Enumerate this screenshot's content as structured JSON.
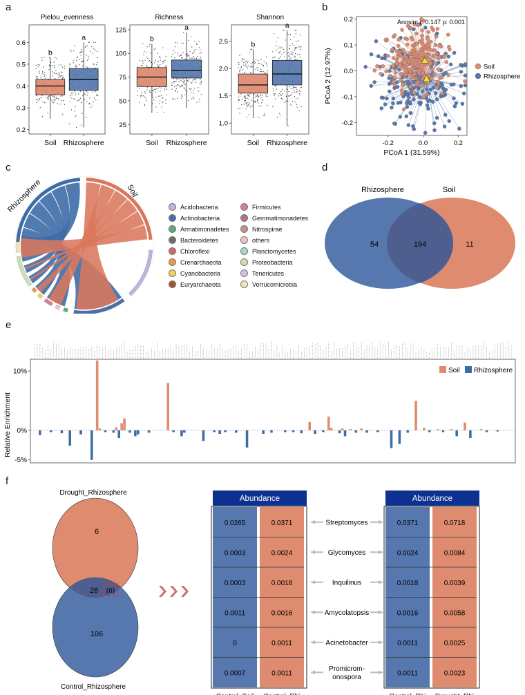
{
  "panel_labels": {
    "a": "a",
    "b": "b",
    "c": "c",
    "d": "d",
    "e": "e",
    "f": "f"
  },
  "colors": {
    "soil": "#D9775D",
    "rhizosphere": "#3E6CA7",
    "soil_fill": "#DE8B70",
    "rhizo_fill": "#5678AE",
    "overlap": "#4E5F8F",
    "header": "#0D3191",
    "arrow": "#C8706A"
  },
  "panel_a": {
    "boxes": [
      {
        "title": "Pielou_evenness",
        "ticks": [
          "0.2",
          "0.3",
          "0.4",
          "0.5",
          "0.6"
        ],
        "groups": [
          {
            "name": "Soil",
            "letter": "b",
            "q1": 0.36,
            "median": 0.4,
            "q3": 0.43,
            "wlo": 0.25,
            "whi": 0.53
          },
          {
            "name": "Rhizosphere",
            "letter": "a",
            "q1": 0.38,
            "median": 0.43,
            "q3": 0.48,
            "wlo": 0.21,
            "whi": 0.6
          }
        ]
      },
      {
        "title": "Richness",
        "ticks": [
          "25",
          "50",
          "75",
          "100",
          "125"
        ],
        "groups": [
          {
            "name": "Soil",
            "letter": "b",
            "q1": 65,
            "median": 75,
            "q3": 85,
            "wlo": 38,
            "whi": 110
          },
          {
            "name": "Rhizosphere",
            "letter": "a",
            "q1": 74,
            "median": 82,
            "q3": 93,
            "wlo": 42,
            "whi": 122
          }
        ]
      },
      {
        "title": "Shannon",
        "ticks": [
          "1.0",
          "1.5",
          "2.0",
          "2.5"
        ],
        "groups": [
          {
            "name": "Soil",
            "letter": "b",
            "q1": 1.55,
            "median": 1.7,
            "q3": 1.9,
            "wlo": 1.1,
            "whi": 2.35
          },
          {
            "name": "Rhizosphere",
            "letter": "a",
            "q1": 1.7,
            "median": 1.9,
            "q3": 2.15,
            "wlo": 0.95,
            "whi": 2.7
          }
        ]
      }
    ]
  },
  "panel_b": {
    "stat": "Anosim.r: 0.147 p: 0.001",
    "xlabel": "PCoA 1 (31.59%)",
    "ylabel": "PCoA 2 (12.97%)",
    "xticks": [
      "-0.2",
      "0.0",
      "0.2"
    ],
    "yticks": [
      "0.2",
      "0.1",
      "0.0",
      "-0.1",
      "-0.2"
    ],
    "legend": [
      "Soil",
      "Rhizosphere"
    ],
    "xlim": [
      -0.38,
      0.25
    ],
    "ylim": [
      -0.25,
      0.21
    ],
    "centroids": {
      "Soil": [
        0.01,
        0.04
      ],
      "Rhizosphere": [
        0.02,
        -0.03
      ]
    }
  },
  "panel_c": {
    "sector_labels": [
      "Rhizosphere",
      "Soil"
    ],
    "legend": [
      "Acidobacteria",
      "Actinobacteria",
      "Armatimonadetes",
      "Bacteroidetes",
      "Chloroflexi",
      "Crenarchaeota",
      "Cyanobacteria",
      "Euryarchaeota",
      "Firmicutes",
      "Gemmatimonadetes",
      "Nitrospirae",
      "others",
      "Planctomycetes",
      "Proteobacteria",
      "Tenericutes",
      "Verrucomicrobia"
    ],
    "legend_colors": [
      "#B9B6DC",
      "#4A6FA8",
      "#5DAA7C",
      "#6E6E6E",
      "#D36A5E",
      "#E59A4E",
      "#E8D35C",
      "#A9522F",
      "#D77F95",
      "#B77386",
      "#C98E8A",
      "#F1BFD0",
      "#A9D6D6",
      "#C8E2B8",
      "#D7BDE2",
      "#F6E7B2"
    ]
  },
  "panel_d": {
    "left_label": "Rhizosphere",
    "right_label": "Soil",
    "left_only": "54",
    "overlap": "194",
    "right_only": "11"
  },
  "panel_e": {
    "ylabel": "Relative Enrichment",
    "yticks": [
      "10%",
      "0%",
      "-5%"
    ],
    "legend": [
      "Soil",
      "Rhizosphere"
    ]
  },
  "chart_data": {
    "type": "bar",
    "title": "",
    "ylabel": "Relative Enrichment",
    "ylim": [
      -5.5,
      12
    ],
    "series": [
      {
        "name": "Soil",
        "values": [
          {
            "i": 23,
            "v": 11.8
          },
          {
            "i": 24,
            "v": 0.3
          },
          {
            "i": 30,
            "v": 0.5
          },
          {
            "i": 32,
            "v": 1.2
          },
          {
            "i": 33,
            "v": 2.0
          },
          {
            "i": 49,
            "v": 8.0
          },
          {
            "i": 101,
            "v": 1.4
          },
          {
            "i": 108,
            "v": 2.3
          },
          {
            "i": 109,
            "v": 0.4
          },
          {
            "i": 113,
            "v": 0.3
          },
          {
            "i": 116,
            "v": 0.2
          },
          {
            "i": 120,
            "v": 0.3
          },
          {
            "i": 140,
            "v": 5.0
          },
          {
            "i": 143,
            "v": 0.4
          },
          {
            "i": 148,
            "v": 0.2
          },
          {
            "i": 153,
            "v": 0.2
          },
          {
            "i": 158,
            "v": 1.3
          },
          {
            "i": 164,
            "v": 0.2
          }
        ]
      },
      {
        "name": "Rhizosphere",
        "values": [
          {
            "i": 2,
            "v": -0.8
          },
          {
            "i": 6,
            "v": -0.3
          },
          {
            "i": 10,
            "v": -0.5
          },
          {
            "i": 13,
            "v": -2.6
          },
          {
            "i": 17,
            "v": -0.7
          },
          {
            "i": 21,
            "v": -5.0
          },
          {
            "i": 26,
            "v": -0.3
          },
          {
            "i": 29,
            "v": -0.4
          },
          {
            "i": 31,
            "v": -1.3
          },
          {
            "i": 35,
            "v": -0.4
          },
          {
            "i": 37,
            "v": -1.0
          },
          {
            "i": 38,
            "v": -0.7
          },
          {
            "i": 42,
            "v": -0.4
          },
          {
            "i": 51,
            "v": -0.3
          },
          {
            "i": 54,
            "v": -1.0
          },
          {
            "i": 55,
            "v": -0.4
          },
          {
            "i": 62,
            "v": -1.8
          },
          {
            "i": 66,
            "v": -0.3
          },
          {
            "i": 68,
            "v": -0.6
          },
          {
            "i": 70,
            "v": -0.3
          },
          {
            "i": 74,
            "v": -0.4
          },
          {
            "i": 78,
            "v": -2.9
          },
          {
            "i": 84,
            "v": -0.6
          },
          {
            "i": 87,
            "v": -0.4
          },
          {
            "i": 92,
            "v": -0.3
          },
          {
            "i": 95,
            "v": -0.3
          },
          {
            "i": 98,
            "v": -0.5
          },
          {
            "i": 103,
            "v": -0.6
          },
          {
            "i": 106,
            "v": -0.3
          },
          {
            "i": 112,
            "v": -0.5
          },
          {
            "i": 114,
            "v": -1.0
          },
          {
            "i": 118,
            "v": -0.4
          },
          {
            "i": 122,
            "v": -0.4
          },
          {
            "i": 126,
            "v": -0.3
          },
          {
            "i": 131,
            "v": -3.0
          },
          {
            "i": 134,
            "v": -2.3
          },
          {
            "i": 137,
            "v": -0.4
          },
          {
            "i": 145,
            "v": -0.3
          },
          {
            "i": 150,
            "v": -0.3
          },
          {
            "i": 155,
            "v": -1.0
          },
          {
            "i": 160,
            "v": -1.3
          },
          {
            "i": 166,
            "v": -0.3
          },
          {
            "i": 170,
            "v": -0.2
          }
        ]
      }
    ],
    "n_categories": 176
  },
  "panel_f": {
    "venn": {
      "top_label": "Drought_Rhizosphere",
      "bottom_label": "Control_Rhizosphere",
      "top_only": "6",
      "overlap": "26",
      "highlight": "(6)",
      "bottom_only": "106"
    },
    "left_table": {
      "header": "Abundance",
      "col1_label": "Control_Soil",
      "col2_label": "Control_Rhi",
      "col1": [
        "0.0265",
        "0.0003",
        "0.0003",
        "0.0011",
        "0",
        "0.0007"
      ],
      "col2": [
        "0.0371",
        "0.0024",
        "0.0018",
        "0.0016",
        "0.0011",
        "0.0011"
      ]
    },
    "genera": [
      "Streptomyces",
      "Glycomyces",
      "Inquilinus",
      "Amycolatopsis",
      "Acinetobacter",
      "Promicrom-\nonospora"
    ],
    "right_table": {
      "header": "Abundance",
      "col1_label": "Control_Rhi",
      "col2_label": "Drought_Rhi",
      "col1": [
        "0.0371",
        "0.0024",
        "0.0018",
        "0.0016",
        "0.0011",
        "0.0011"
      ],
      "col2": [
        "0.0718",
        "0.0084",
        "0.0039",
        "0.0058",
        "0.0025",
        "0.0023"
      ]
    }
  }
}
